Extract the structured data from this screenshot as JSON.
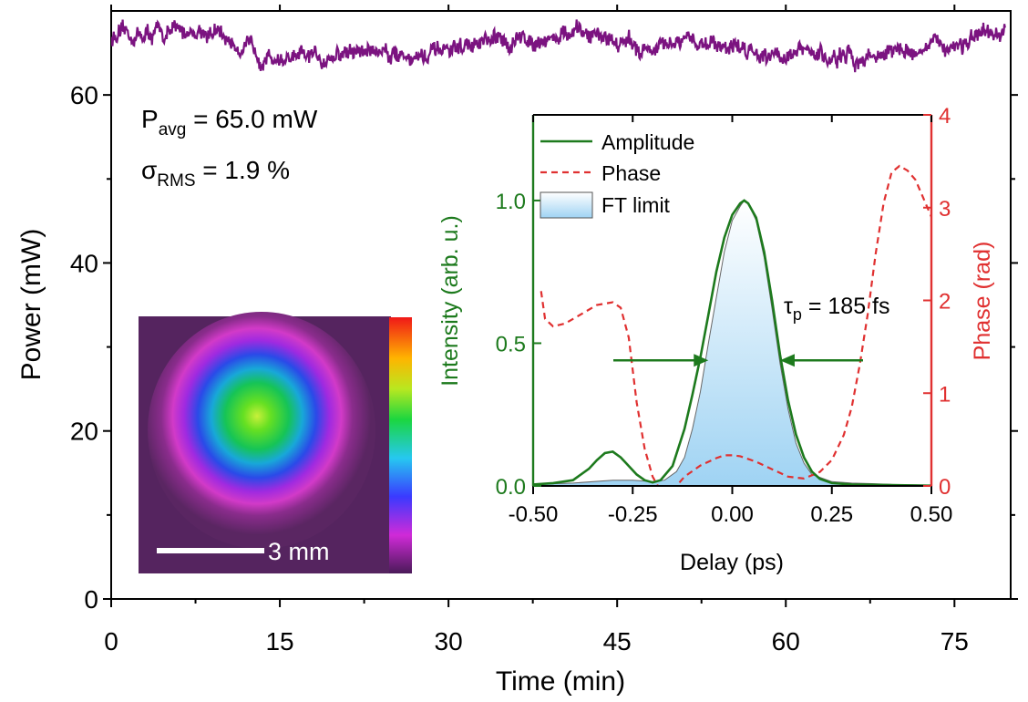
{
  "colors": {
    "power_trace": "#7b1380",
    "amplitude": "#1d7a1d",
    "phase": "#e03030",
    "ft_fill_light": "#ffffff",
    "ft_fill_dark": "#9fd3f3",
    "axis": "#000000"
  },
  "annotations": {
    "p_base": "P",
    "p_sub": "avg",
    "p_value": " = 65.0 mW",
    "sigma_base": "σ",
    "sigma_sub": "RMS",
    "sigma_value": " = 1.9 %",
    "tau_base": "τ",
    "tau_sub": "p",
    "tau_value": " = 185 fs"
  },
  "beam_image": {
    "scalebar_label": "3 mm"
  },
  "chart_data": [
    {
      "type": "line",
      "xlabel": "Time (min)",
      "ylabel": "Power (mW)",
      "xlim": [
        0,
        80
      ],
      "ylim": [
        0,
        70
      ],
      "xticks": [
        0,
        15,
        30,
        45,
        60,
        75
      ],
      "yticks": [
        0,
        20,
        40,
        60
      ],
      "series": [
        {
          "type": "noisy-line",
          "mean": 65.0,
          "rms_percent": 1.9,
          "x": [
            0,
            2,
            4,
            6,
            8,
            10,
            12,
            14,
            16,
            18,
            20,
            22,
            24,
            26,
            28,
            30,
            32,
            34,
            36,
            38,
            40,
            42,
            44,
            46,
            48,
            50,
            52,
            54,
            56,
            58,
            60,
            62,
            64,
            66,
            68,
            70,
            72,
            74,
            76,
            78,
            79.5
          ],
          "y": [
            66.8,
            67.0,
            67.3,
            67.5,
            67.8,
            66.8,
            65.5,
            64.6,
            64.0,
            64.4,
            64.8,
            65.2,
            65.4,
            64.9,
            64.5,
            65.2,
            65.9,
            66.2,
            66.5,
            66.8,
            67.0,
            67.2,
            67.0,
            66.0,
            65.4,
            65.8,
            66.4,
            66.2,
            65.6,
            65.2,
            64.8,
            65.0,
            64.4,
            64.2,
            64.8,
            65.2,
            65.4,
            65.9,
            66.3,
            66.8,
            67.0
          ]
        }
      ]
    },
    {
      "type": "line",
      "xlabel": "Delay (ps)",
      "ylabel": "Intensity (arb. u.)",
      "y2label": "Phase (rad)",
      "xlim": [
        -0.5,
        0.5
      ],
      "ylim": [
        0,
        1.3
      ],
      "y2lim": [
        0,
        4
      ],
      "xticks": [
        -0.5,
        -0.25,
        0.0,
        0.25,
        0.5
      ],
      "xticklabels": [
        "-0.50",
        "-0.25",
        "0.00",
        "0.25",
        "0.50"
      ],
      "yticks": [
        0.0,
        0.5,
        1.0
      ],
      "yticklabels": [
        "0.0",
        "0.5",
        "1.0"
      ],
      "y2ticks": [
        0,
        1,
        2,
        3,
        4
      ],
      "legend": "top-left",
      "fwhm_arrow_y": 0.44,
      "fwhm_bounds": [
        -0.06,
        0.12
      ],
      "series": [
        {
          "name": "Amplitude",
          "style": "solid",
          "axis": "left",
          "x": [
            -0.5,
            -0.45,
            -0.4,
            -0.36,
            -0.34,
            -0.32,
            -0.3,
            -0.28,
            -0.26,
            -0.24,
            -0.22,
            -0.2,
            -0.18,
            -0.15,
            -0.12,
            -0.1,
            -0.08,
            -0.06,
            -0.04,
            -0.02,
            0.0,
            0.02,
            0.03,
            0.04,
            0.06,
            0.08,
            0.1,
            0.12,
            0.14,
            0.16,
            0.18,
            0.2,
            0.22,
            0.25,
            0.3,
            0.35,
            0.4,
            0.45,
            0.5
          ],
          "y": [
            0.005,
            0.01,
            0.02,
            0.06,
            0.09,
            0.115,
            0.12,
            0.1,
            0.07,
            0.04,
            0.02,
            0.012,
            0.02,
            0.07,
            0.2,
            0.32,
            0.45,
            0.6,
            0.75,
            0.87,
            0.95,
            0.99,
            1.0,
            0.99,
            0.94,
            0.82,
            0.65,
            0.46,
            0.3,
            0.18,
            0.1,
            0.05,
            0.025,
            0.01,
            0.005,
            0.004,
            0.003,
            0.002,
            0.001
          ]
        },
        {
          "name": "Phase",
          "style": "dashed",
          "axis": "right",
          "x": [
            -0.48,
            -0.47,
            -0.45,
            -0.42,
            -0.38,
            -0.34,
            -0.3,
            -0.28,
            -0.26,
            -0.24,
            -0.22,
            -0.2,
            -0.18,
            -0.16,
            -0.14,
            -0.12,
            -0.08,
            -0.04,
            -0.02,
            0.0,
            0.02,
            0.06,
            0.1,
            0.14,
            0.18,
            0.22,
            0.25,
            0.28,
            0.3,
            0.32,
            0.34,
            0.36,
            0.38,
            0.4,
            0.42,
            0.44,
            0.46,
            0.48,
            0.5
          ],
          "y": [
            2.1,
            1.8,
            1.72,
            1.75,
            1.85,
            1.95,
            1.98,
            1.92,
            1.6,
            0.9,
            0.4,
            0.1,
            -0.05,
            -0.1,
            0.0,
            0.1,
            0.22,
            0.3,
            0.33,
            0.33,
            0.32,
            0.26,
            0.18,
            0.1,
            0.08,
            0.15,
            0.28,
            0.55,
            0.85,
            1.3,
            1.85,
            2.5,
            3.05,
            3.38,
            3.45,
            3.4,
            3.3,
            3.1,
            2.9
          ]
        },
        {
          "name": "FT limit",
          "style": "filled-area",
          "axis": "left",
          "x": [
            -0.5,
            -0.4,
            -0.3,
            -0.25,
            -0.2,
            -0.17,
            -0.14,
            -0.12,
            -0.1,
            -0.08,
            -0.06,
            -0.04,
            -0.02,
            0.0,
            0.02,
            0.03,
            0.04,
            0.06,
            0.08,
            0.1,
            0.12,
            0.14,
            0.16,
            0.18,
            0.2,
            0.25,
            0.3,
            0.35,
            0.4,
            0.5
          ],
          "y": [
            0.005,
            0.01,
            0.02,
            0.02,
            0.015,
            0.02,
            0.05,
            0.1,
            0.2,
            0.33,
            0.5,
            0.66,
            0.82,
            0.93,
            0.98,
            1.0,
            0.99,
            0.93,
            0.8,
            0.62,
            0.43,
            0.27,
            0.15,
            0.08,
            0.04,
            0.015,
            0.01,
            0.008,
            0.005,
            0.003
          ]
        }
      ]
    }
  ]
}
